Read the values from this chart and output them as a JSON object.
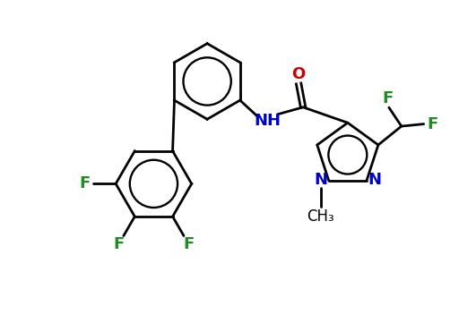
{
  "background": "#ffffff",
  "bond_color": "#000000",
  "N_color": "#0000cc",
  "O_color": "#cc0000",
  "F_color": "#228B22",
  "line_width": 2.0,
  "ring_inner_scale": 0.63,
  "font_size_label": 13,
  "font_size_ch3": 12,
  "xlim": [
    0,
    10
  ],
  "ylim": [
    0,
    7.2
  ]
}
